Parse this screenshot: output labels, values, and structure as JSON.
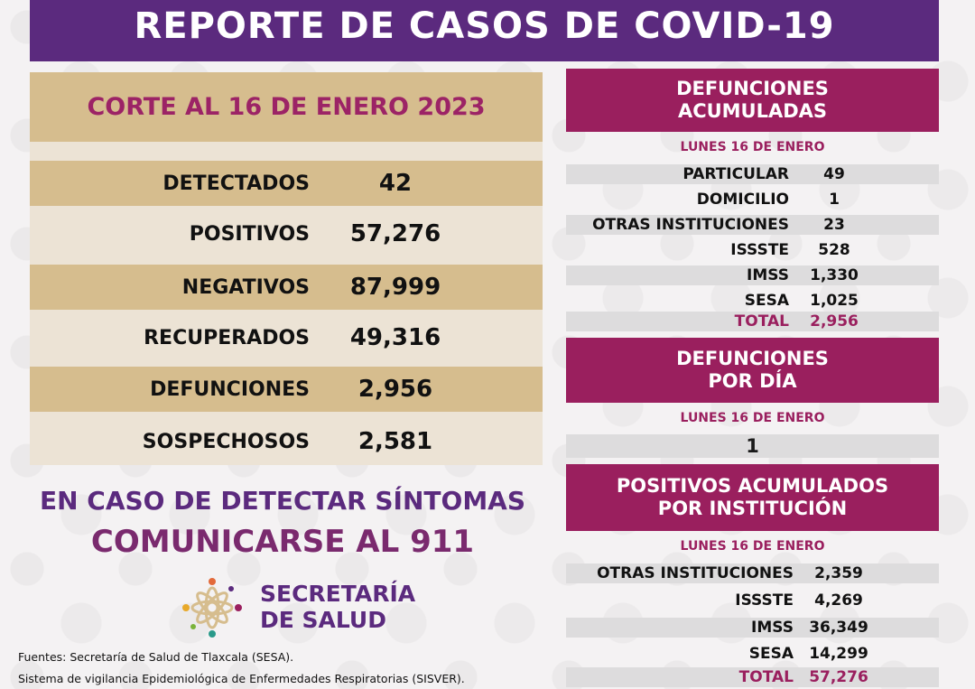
{
  "title": "REPORTE DE CASOS DE COVID-19",
  "cutoff": "CORTE AL 16 DE ENERO 2023",
  "stats": [
    {
      "label": "DETECTADOS",
      "value": "42"
    },
    {
      "label": "POSITIVOS",
      "value": "57,276"
    },
    {
      "label": "NEGATIVOS",
      "value": "87,999"
    },
    {
      "label": "RECUPERADOS",
      "value": "49,316"
    },
    {
      "label": "DEFUNCIONES",
      "value": "2,956"
    },
    {
      "label": "SOSPECHOSOS",
      "value": "2,581"
    }
  ],
  "cta": {
    "line1": "EN CASO DE DETECTAR SÍNTOMAS",
    "line2": "COMUNICARSE AL 911"
  },
  "logo": {
    "line1": "SECRETARÍA",
    "line2": "DE SALUD"
  },
  "sources": {
    "line1": "Fuentes:  Secretaría de Salud de Tlaxcala (SESA).",
    "line2": "Sistema de vigilancia Epidemiológica de Enfermedades Respiratorias (SISVER)."
  },
  "deaths_cumulative": {
    "header_line1": "DEFUNCIONES",
    "header_line2": "ACUMULADAS",
    "date": "LUNES 16 DE ENERO",
    "rows": [
      {
        "label": "PARTICULAR",
        "value": "49"
      },
      {
        "label": "DOMICILIO",
        "value": "1"
      },
      {
        "label": "OTRAS INSTITUCIONES",
        "value": "23"
      },
      {
        "label": "ISSSTE",
        "value": "528"
      },
      {
        "label": "IMSS",
        "value": "1,330"
      },
      {
        "label": "SESA",
        "value": "1,025"
      }
    ],
    "total_label": "TOTAL",
    "total_value": "2,956"
  },
  "deaths_daily": {
    "header_line1": "DEFUNCIONES",
    "header_line2": "POR DÍA",
    "date": "LUNES 16 DE ENERO",
    "value": "1"
  },
  "positives_by_institution": {
    "header_line1": "POSITIVOS ACUMULADOS",
    "header_line2": "POR INSTITUCIÓN",
    "date": "LUNES 16 DE ENERO",
    "rows": [
      {
        "label": "OTRAS INSTITUCIONES",
        "value": "2,359"
      },
      {
        "label": "ISSSTE",
        "value": "4,269"
      },
      {
        "label": "IMSS",
        "value": "36,349"
      },
      {
        "label": "SESA",
        "value": "14,299"
      }
    ],
    "total_label": "TOTAL",
    "total_value": "57,276"
  },
  "colors": {
    "purple": "#5b2a7e",
    "magenta": "#9a1f5e",
    "tan": "#d6bd8e",
    "cream": "#ece3d5"
  }
}
